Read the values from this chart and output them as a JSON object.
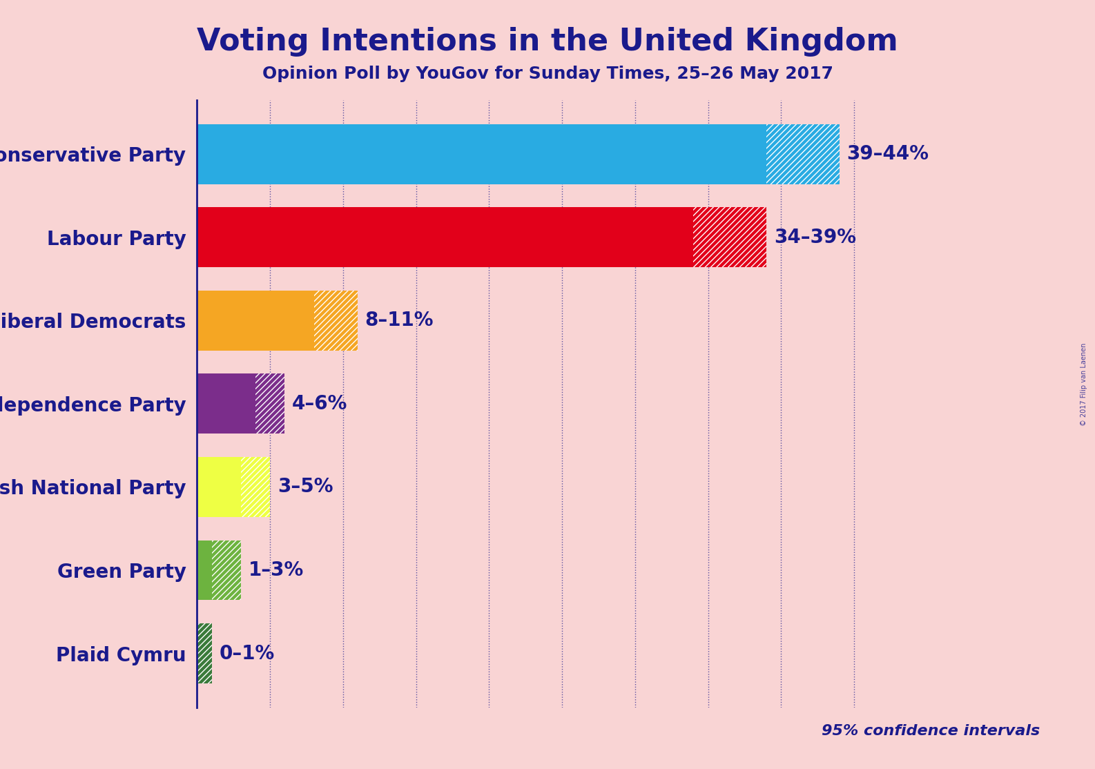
{
  "title": "Voting Intentions in the United Kingdom",
  "subtitle": "Opinion Poll by YouGov for Sunday Times, 25–26 May 2017",
  "watermark": "© 2017 Filip van Laenen",
  "parties": [
    "Conservative Party",
    "Labour Party",
    "Liberal Democrats",
    "UK Independence Party",
    "Scottish National Party",
    "Green Party",
    "Plaid Cymru"
  ],
  "low_values": [
    39,
    34,
    8,
    4,
    3,
    1,
    0
  ],
  "high_values": [
    44,
    39,
    11,
    6,
    5,
    3,
    1
  ],
  "labels": [
    "39–44%",
    "34–39%",
    "8–11%",
    "4–6%",
    "3–5%",
    "1–3%",
    "0–1%"
  ],
  "solid_colors": [
    "#29ABE2",
    "#E2001A",
    "#F5A623",
    "#7B2D8B",
    "#EEFF44",
    "#6DB33F",
    "#3A7A3A"
  ],
  "background_color": "#F9D4D4",
  "text_color": "#1A1A8C",
  "title_fontsize": 32,
  "subtitle_fontsize": 18,
  "label_fontsize": 20,
  "party_fontsize": 20,
  "confidence_text": "95% confidence intervals",
  "xlim": [
    0,
    48
  ],
  "grid_ticks": [
    5,
    10,
    15,
    20,
    25,
    30,
    35,
    40,
    45
  ]
}
